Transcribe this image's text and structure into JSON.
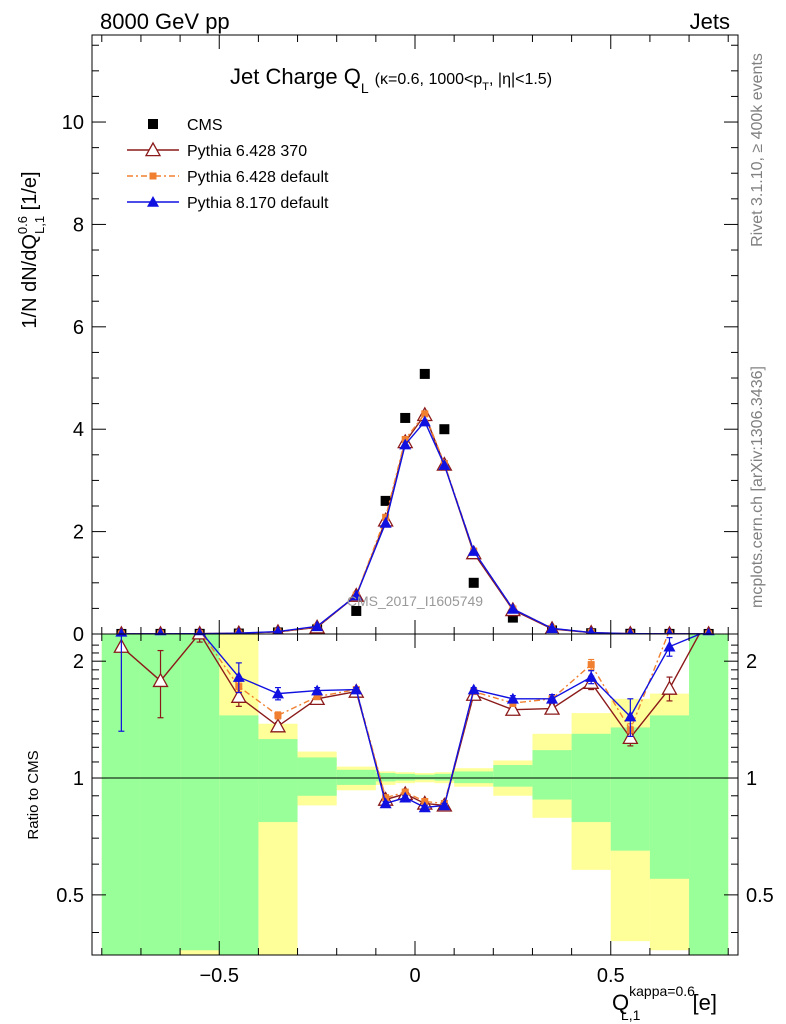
{
  "header": {
    "left": "8000 GeV pp",
    "right": "Jets"
  },
  "side_labels": {
    "rivet": "Rivet 3.1.10, ≥ 400k events",
    "mcplots": "mcplots.cern.ch [arXiv:1306.3436]"
  },
  "watermark": "CMS_2017_I1605749",
  "chart_data": [
    {
      "type": "line",
      "title": "Jet Charge Q",
      "title_sub": "L",
      "title_params_a": "(κ=0.6, 1000<p",
      "title_params_sub": "T",
      "title_params_b": ", |η|<1.5)",
      "ylabel": "1/N dN/dQ",
      "ylabel_sup": "0.6",
      "ylabel_sub": "L,1",
      "ylabel_unit": " [1/e]",
      "xlim": [
        -0.825,
        0.825
      ],
      "ylim": [
        0,
        11.7
      ],
      "yticks": [
        0,
        2,
        4,
        6,
        8,
        10
      ],
      "ytick_labels": [
        "0",
        "2",
        "4",
        "6",
        "8",
        "10"
      ],
      "legend_position": "top-left",
      "x": [
        -0.75,
        -0.65,
        -0.55,
        -0.45,
        -0.35,
        -0.25,
        -0.15,
        -0.075,
        -0.025,
        0.025,
        0.075,
        0.15,
        0.25,
        0.35,
        0.45,
        0.55,
        0.65,
        0.75
      ],
      "series": [
        {
          "name": "CMS",
          "color": "#000000",
          "marker": "square",
          "values": [
            0.001,
            0.002,
            0.003,
            0.009,
            0.03,
            0.09,
            0.45,
            2.6,
            4.22,
            5.08,
            4.0,
            1.0,
            0.32,
            0.07,
            0.015,
            0.004,
            0.002,
            0.001
          ]
        },
        {
          "name": "Pythia 6.428 370",
          "color": "#8b1a1a",
          "marker": "open-triangle",
          "values": [
            0.002,
            0.004,
            0.007,
            0.015,
            0.04,
            0.13,
            0.75,
            2.22,
            3.75,
            4.28,
            3.31,
            1.58,
            0.47,
            0.1,
            0.025,
            0.006,
            0.003,
            0.003
          ]
        },
        {
          "name": "Pythia 6.428 default",
          "color": "#f08030",
          "marker": "small-square",
          "values": [
            0.002,
            0.004,
            0.007,
            0.016,
            0.043,
            0.14,
            0.76,
            2.28,
            3.8,
            4.3,
            3.33,
            1.62,
            0.49,
            0.11,
            0.028,
            0.006,
            0.003,
            0.003
          ]
        },
        {
          "name": "Pythia 8.170 default",
          "color": "#1010e0",
          "marker": "triangle",
          "values": [
            0.002,
            0.004,
            0.007,
            0.016,
            0.048,
            0.15,
            0.75,
            2.17,
            3.7,
            4.15,
            3.3,
            1.62,
            0.49,
            0.11,
            0.028,
            0.006,
            0.003,
            0.003
          ]
        }
      ]
    },
    {
      "type": "line",
      "ylabel": "Ratio to CMS",
      "xlabel": "Q",
      "xlabel_sup": "kappa=0.6",
      "xlabel_sub": "L,1",
      "xlabel_unit": " [e]",
      "xlim": [
        -0.825,
        0.825
      ],
      "xticks": [
        -0.5,
        0,
        0.5
      ],
      "xtick_labels": [
        "−0.5",
        "0",
        "0.5"
      ],
      "ylim": [
        0.35,
        2.35
      ],
      "scale": "log",
      "yticks": [
        0.5,
        1,
        2
      ],
      "ytick_labels": [
        "0.5",
        "1",
        "2"
      ],
      "reference_line": 1,
      "bins": [
        [
          -0.8,
          -0.7
        ],
        [
          -0.7,
          -0.6
        ],
        [
          -0.6,
          -0.5
        ],
        [
          -0.5,
          -0.4
        ],
        [
          -0.4,
          -0.3
        ],
        [
          -0.3,
          -0.2
        ],
        [
          -0.2,
          -0.1
        ],
        [
          -0.1,
          -0.05
        ],
        [
          -0.05,
          0
        ],
        [
          0,
          0.05
        ],
        [
          0.05,
          0.1
        ],
        [
          0.1,
          0.2
        ],
        [
          0.2,
          0.3
        ],
        [
          0.3,
          0.4
        ],
        [
          0.4,
          0.5
        ],
        [
          0.5,
          0.6
        ],
        [
          0.6,
          0.7
        ],
        [
          0.7,
          0.8
        ]
      ],
      "band_stat": [
        [
          0.35,
          2.35
        ],
        [
          0.35,
          2.35
        ],
        [
          0.36,
          2.35
        ],
        [
          0.35,
          1.45
        ],
        [
          0.77,
          1.26
        ],
        [
          0.9,
          1.13
        ],
        [
          0.96,
          1.05
        ],
        [
          0.98,
          1.03
        ],
        [
          0.985,
          1.025
        ],
        [
          0.99,
          1.02
        ],
        [
          0.985,
          1.025
        ],
        [
          0.97,
          1.04
        ],
        [
          0.95,
          1.08
        ],
        [
          0.88,
          1.18
        ],
        [
          0.77,
          1.3
        ],
        [
          0.65,
          1.35
        ],
        [
          0.55,
          1.45
        ],
        [
          0.35,
          2.35
        ]
      ],
      "band_total": [
        [
          0.35,
          2.35
        ],
        [
          0.35,
          2.35
        ],
        [
          0.35,
          2.35
        ],
        [
          0.65,
          2.35
        ],
        [
          0.35,
          1.38
        ],
        [
          0.85,
          1.17
        ],
        [
          0.93,
          1.07
        ],
        [
          0.96,
          1.04
        ],
        [
          0.97,
          1.035
        ],
        [
          0.975,
          1.03
        ],
        [
          0.97,
          1.035
        ],
        [
          0.95,
          1.06
        ],
        [
          0.9,
          1.11
        ],
        [
          0.79,
          1.3
        ],
        [
          0.58,
          1.47
        ],
        [
          0.38,
          1.6
        ],
        [
          0.36,
          1.65
        ],
        [
          0.35,
          2.35
        ]
      ],
      "series": [
        {
          "name": "Pythia 6.428 370",
          "color": "#8b1a1a",
          "values": [
            2.18,
            1.78,
            2.36,
            1.62,
            1.36,
            1.6,
            1.67,
            0.88,
            0.91,
            0.86,
            0.85,
            1.64,
            1.5,
            1.51,
            1.76,
            1.27,
            1.7,
            2.6
          ],
          "errors": [
            0,
            0.35,
            0.12,
            0.09,
            0.03,
            0.02,
            0.02,
            0.01,
            0.01,
            0.01,
            0.01,
            0.02,
            0.03,
            0.04,
            0.07,
            0.06,
            0.12,
            0
          ]
        },
        {
          "name": "Pythia 6.428 default",
          "color": "#f08030",
          "values": [
            2.4,
            2.4,
            2.4,
            1.72,
            1.45,
            1.62,
            1.69,
            0.89,
            0.92,
            0.87,
            0.86,
            1.67,
            1.56,
            1.6,
            1.96,
            1.33,
            2.4,
            2.4
          ],
          "errors": [
            0,
            0,
            0,
            0.05,
            0.03,
            0.02,
            0.02,
            0.01,
            0.01,
            0.01,
            0.01,
            0.02,
            0.03,
            0.04,
            0.06,
            0.05,
            0,
            0
          ]
        },
        {
          "name": "Pythia 8.170 default",
          "color": "#1010e0",
          "values": [
            2.38,
            2.4,
            2.4,
            1.82,
            1.65,
            1.68,
            1.69,
            0.86,
            0.89,
            0.84,
            0.85,
            1.69,
            1.6,
            1.6,
            1.82,
            1.44,
            2.18,
            2.4
          ],
          "errors": [
            1.06,
            0,
            0,
            0.16,
            0.06,
            0.03,
            0.02,
            0.01,
            0.01,
            0.01,
            0.01,
            0.02,
            0.03,
            0.04,
            0.07,
            0.16,
            0.12,
            0
          ]
        }
      ]
    }
  ]
}
